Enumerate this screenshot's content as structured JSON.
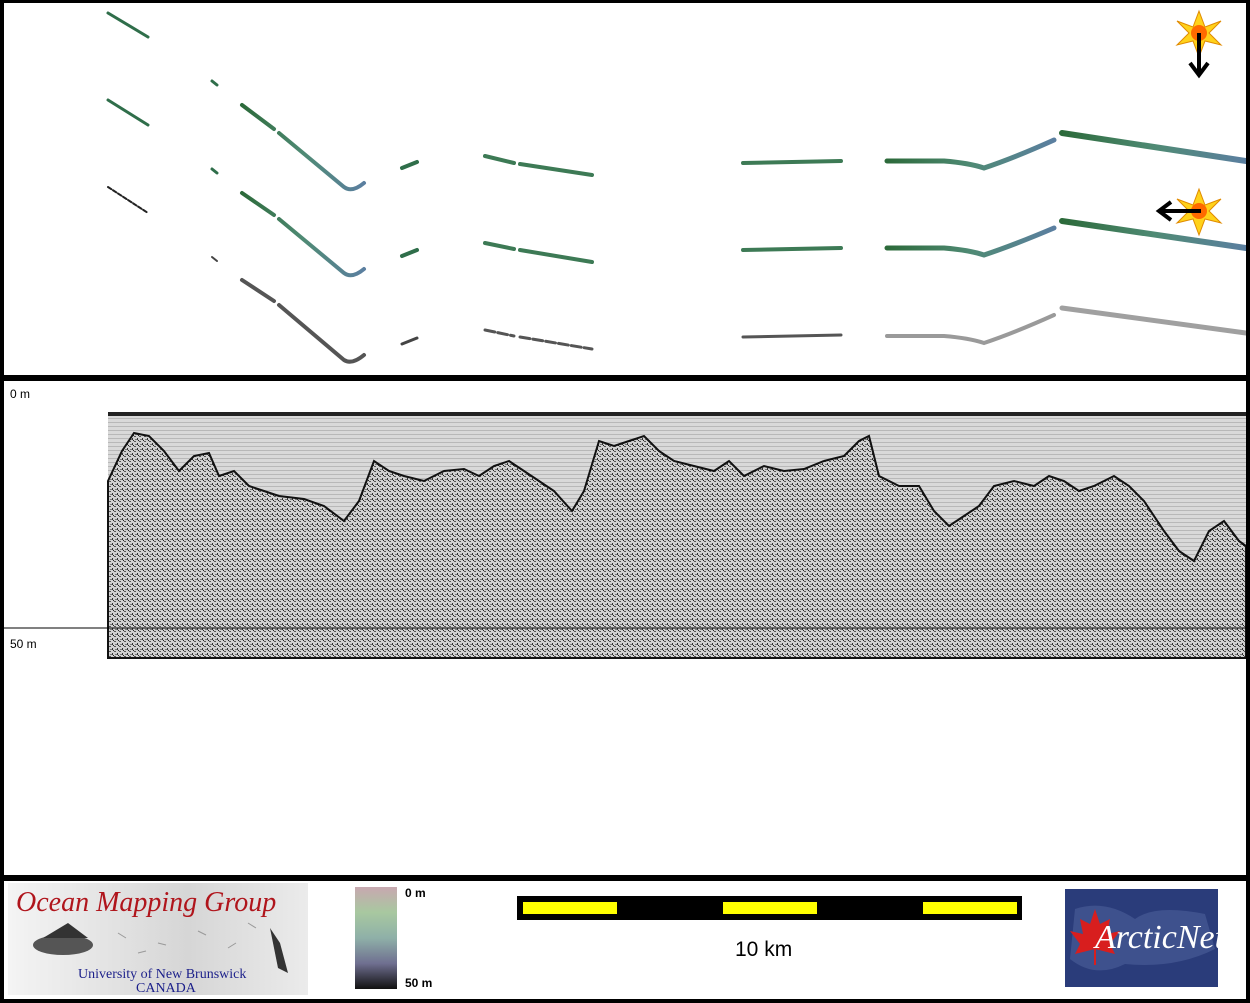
{
  "profile": {
    "depth_top": "0 m",
    "depth_bottom": "50 m"
  },
  "footer": {
    "omg": {
      "title": "Ocean Mapping Group",
      "university": "University of New Brunswick",
      "country": "CANADA"
    },
    "colorbar": {
      "top_label": "0 m",
      "bottom_label": "50 m"
    },
    "scale_bar": {
      "label": "10 km"
    },
    "arcticnet": {
      "text": "ArcticNet"
    }
  },
  "colors": {
    "omg_red": "#b0151c",
    "omg_blue": "#1b1f8a",
    "scale_yellow": "#ffff00",
    "arcticnet_blue": "#2a3c7a",
    "arcticnet_leaf": "#d81e1e"
  },
  "icons": {
    "sun_icon_top": "sun-with-down-arrow-icon",
    "sun_icon_side": "sun-with-left-arrow-icon"
  }
}
